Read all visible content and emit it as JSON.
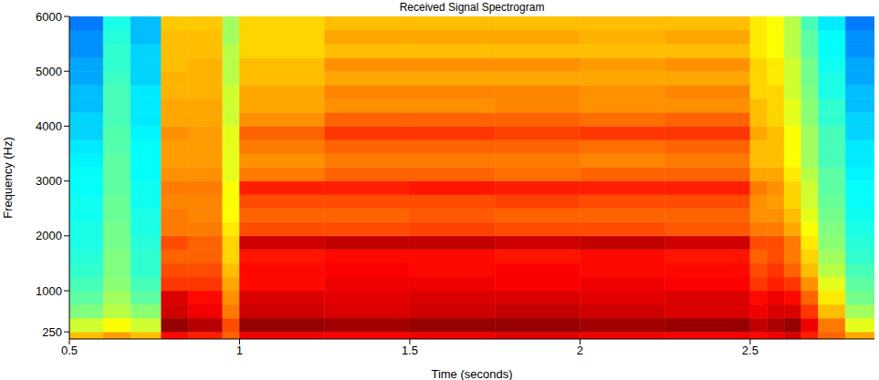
{
  "chart_data": {
    "type": "heatmap",
    "title": "Received Signal Spectrogram",
    "x_label": "Time (seconds)",
    "y_label": "Frequency (Hz)",
    "xlim": [
      0.5,
      2.865
    ],
    "xticks": [
      0.5,
      1,
      1.5,
      2,
      2.5
    ],
    "ylim": [
      120,
      6000
    ],
    "yticks": [
      250,
      1000,
      2000,
      3000,
      4000,
      5000,
      6000
    ],
    "zlim": [
      10,
      100
    ],
    "time_edges": [
      0.5,
      0.6,
      0.68,
      0.77,
      0.85,
      0.95,
      1.0,
      1.25,
      1.5,
      1.75,
      2.0,
      2.25,
      2.5,
      2.55,
      2.6,
      2.65,
      2.7,
      2.78,
      2.865
    ],
    "frequency_edges": [
      120,
      250,
      500,
      750,
      1000,
      1250,
      1500,
      1750,
      2000,
      2250,
      2500,
      2750,
      3000,
      3250,
      3500,
      3750,
      4000,
      4250,
      4500,
      4750,
      5000,
      5250,
      5500,
      5750,
      6000
    ],
    "cells": [
      [
        72,
        75,
        72,
        88,
        86,
        80,
        90,
        89,
        90,
        91,
        90,
        89,
        88,
        90,
        92,
        86,
        80,
        74
      ],
      [
        62,
        66,
        62,
        98,
        95,
        82,
        98,
        97,
        98,
        98,
        97,
        98,
        94,
        96,
        98,
        90,
        78,
        64
      ],
      [
        55,
        60,
        56,
        93,
        90,
        78,
        93,
        92,
        93,
        94,
        93,
        92,
        90,
        92,
        92,
        84,
        72,
        58
      ],
      [
        52,
        58,
        52,
        92,
        88,
        76,
        92,
        91,
        92,
        92,
        91,
        92,
        88,
        90,
        88,
        80,
        68,
        54
      ],
      [
        50,
        56,
        50,
        84,
        84,
        74,
        88,
        90,
        90,
        89,
        90,
        89,
        84,
        86,
        84,
        76,
        64,
        52
      ],
      [
        48,
        55,
        48,
        82,
        82,
        72,
        88,
        89,
        88,
        89,
        88,
        88,
        82,
        84,
        80,
        72,
        60,
        50
      ],
      [
        47,
        55,
        48,
        80,
        80,
        70,
        87,
        88,
        88,
        87,
        88,
        87,
        80,
        82,
        78,
        70,
        58,
        48
      ],
      [
        46,
        54,
        47,
        82,
        80,
        70,
        93,
        94,
        94,
        93,
        94,
        93,
        82,
        82,
        78,
        68,
        56,
        47
      ],
      [
        46,
        54,
        46,
        78,
        78,
        68,
        82,
        82,
        83,
        82,
        82,
        81,
        78,
        78,
        74,
        66,
        55,
        46
      ],
      [
        45,
        53,
        46,
        78,
        77,
        66,
        80,
        80,
        81,
        80,
        80,
        80,
        76,
        76,
        72,
        64,
        54,
        45
      ],
      [
        45,
        53,
        45,
        77,
        77,
        66,
        82,
        82,
        82,
        83,
        82,
        82,
        76,
        75,
        70,
        62,
        53,
        44
      ],
      [
        44,
        52,
        45,
        78,
        78,
        66,
        86,
        86,
        87,
        86,
        86,
        86,
        78,
        76,
        70,
        62,
        52,
        44
      ],
      [
        44,
        52,
        44,
        76,
        76,
        64,
        78,
        80,
        80,
        79,
        80,
        80,
        74,
        74,
        68,
        60,
        52,
        43
      ],
      [
        43,
        52,
        44,
        75,
        75,
        64,
        76,
        78,
        78,
        78,
        77,
        78,
        72,
        72,
        66,
        58,
        50,
        42
      ],
      [
        42,
        51,
        44,
        75,
        75,
        64,
        78,
        80,
        80,
        80,
        79,
        80,
        72,
        72,
        66,
        58,
        50,
        42
      ],
      [
        40,
        51,
        43,
        76,
        75,
        64,
        80,
        84,
        84,
        83,
        84,
        84,
        74,
        72,
        66,
        58,
        50,
        40
      ],
      [
        40,
        50,
        42,
        74,
        74,
        62,
        76,
        80,
        80,
        80,
        79,
        80,
        72,
        70,
        64,
        56,
        48,
        40
      ],
      [
        38,
        50,
        42,
        74,
        74,
        62,
        74,
        76,
        76,
        77,
        76,
        76,
        72,
        70,
        64,
        56,
        48,
        38
      ],
      [
        38,
        50,
        42,
        73,
        73,
        62,
        74,
        77,
        77,
        77,
        76,
        77,
        70,
        70,
        62,
        55,
        46,
        38
      ],
      [
        36,
        49,
        40,
        73,
        73,
        60,
        72,
        74,
        74,
        74,
        74,
        74,
        70,
        68,
        62,
        54,
        46,
        36
      ],
      [
        36,
        48,
        40,
        72,
        73,
        60,
        72,
        76,
        76,
        76,
        75,
        76,
        70,
        68,
        62,
        54,
        45,
        36
      ],
      [
        34,
        48,
        40,
        72,
        72,
        60,
        70,
        72,
        72,
        72,
        72,
        72,
        68,
        66,
        60,
        52,
        44,
        34
      ],
      [
        34,
        47,
        38,
        72,
        72,
        58,
        70,
        74,
        74,
        74,
        73,
        74,
        68,
        66,
        60,
        52,
        44,
        34
      ],
      [
        32,
        46,
        38,
        71,
        71,
        58,
        70,
        72,
        72,
        72,
        72,
        72,
        68,
        66,
        60,
        50,
        42,
        32
      ]
    ]
  }
}
